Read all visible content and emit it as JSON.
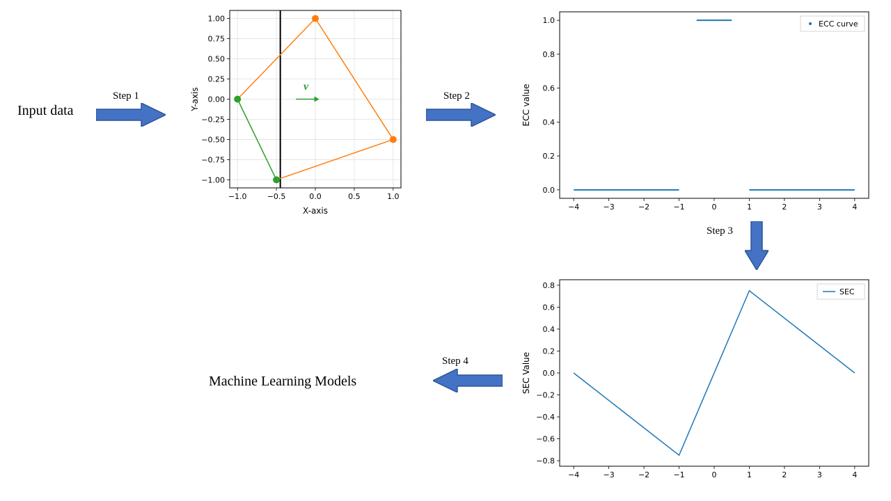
{
  "labels": {
    "input": "Input data",
    "step1": "Step 1",
    "step2": "Step 2",
    "step3": "Step 3",
    "step4": "Step 4",
    "ml": "Machine Learning Models"
  },
  "arrow": {
    "fill": "#4472c4",
    "stroke": "#2f5597",
    "stroke_width": 1.5
  },
  "chart1": {
    "xlabel": "X-axis",
    "ylabel": "Y-axis",
    "xlim": [
      -1.1,
      1.1
    ],
    "ylim": [
      -1.1,
      1.1
    ],
    "xticks": [
      -1.0,
      -0.5,
      0.0,
      0.5,
      1.0
    ],
    "yticks": [
      -1.0,
      -0.75,
      -0.5,
      -0.25,
      0.0,
      0.25,
      0.5,
      0.75,
      1.0
    ],
    "grid_color": "#e0e0e0",
    "border_color": "#000000",
    "bg": "#ffffff",
    "vline_x": -0.45,
    "vline_color": "#000000",
    "vline_width": 2,
    "vlabel": "v",
    "vlabel_color": "#2ca02c",
    "varrow_color": "#2ca02c",
    "points_orange": [
      [
        0,
        1
      ],
      [
        1,
        -0.5
      ]
    ],
    "points_green": [
      [
        -1,
        0
      ],
      [
        -0.5,
        -1
      ]
    ],
    "orange": "#ff7f0e",
    "green": "#2ca02c",
    "line_segments": [
      {
        "from": [
          -1,
          0
        ],
        "to": [
          0,
          1
        ],
        "color": "#ff7f0e"
      },
      {
        "from": [
          0,
          1
        ],
        "to": [
          1,
          -0.5
        ],
        "color": "#ff7f0e"
      },
      {
        "from": [
          1,
          -0.5
        ],
        "to": [
          -0.5,
          -1
        ],
        "color": "#ff7f0e"
      },
      {
        "from": [
          -0.5,
          -1
        ],
        "to": [
          -1,
          0
        ],
        "color": "#2ca02c"
      }
    ],
    "line_width": 1.5,
    "marker_size": 5
  },
  "chart2": {
    "ylabel": "ECC value",
    "xlim": [
      -4.4,
      4.4
    ],
    "ylim": [
      -0.05,
      1.05
    ],
    "xticks": [
      -4,
      -3,
      -2,
      -1,
      0,
      1,
      2,
      3,
      4
    ],
    "yticks": [
      0.0,
      0.2,
      0.4,
      0.6,
      0.8,
      1.0
    ],
    "border_color": "#000000",
    "bg": "#ffffff",
    "legend": "ECC curve",
    "legend_marker": "dot",
    "color": "#1f77b4",
    "segments": [
      {
        "from": [
          -4,
          0
        ],
        "to": [
          -1,
          0
        ]
      },
      {
        "from": [
          -0.5,
          1
        ],
        "to": [
          0.5,
          1
        ]
      },
      {
        "from": [
          1,
          0
        ],
        "to": [
          4,
          0
        ]
      }
    ],
    "line_width": 2
  },
  "chart3": {
    "ylabel": "SEC Value",
    "xlim": [
      -4.4,
      4.4
    ],
    "ylim": [
      -0.85,
      0.85
    ],
    "xticks": [
      -4,
      -3,
      -2,
      -1,
      0,
      1,
      2,
      3,
      4
    ],
    "yticks": [
      -0.8,
      -0.6,
      -0.4,
      -0.2,
      0.0,
      0.2,
      0.4,
      0.6,
      0.8
    ],
    "border_color": "#000000",
    "bg": "#ffffff",
    "legend": "SEC",
    "legend_marker": "line",
    "color": "#1f77b4",
    "points": [
      [
        -4,
        0
      ],
      [
        -1,
        -0.75
      ],
      [
        1,
        0.75
      ],
      [
        4,
        0
      ]
    ],
    "line_width": 1.5
  },
  "positions": {
    "input_label": [
      25,
      148
    ],
    "step1_label": [
      162,
      130
    ],
    "arrow1": [
      138,
      148,
      100,
      34
    ],
    "chart1": [
      268,
      5,
      320,
      310
    ],
    "step2_label": [
      637,
      130
    ],
    "arrow2": [
      612,
      148,
      100,
      34
    ],
    "chart2": [
      740,
      5,
      520,
      310
    ],
    "step3_label": [
      1015,
      324
    ],
    "arrow3": [
      1070,
      318,
      34,
      70
    ],
    "chart3": [
      740,
      390,
      520,
      310
    ],
    "step4_label": [
      635,
      511
    ],
    "arrow4": [
      622,
      530,
      100,
      34
    ],
    "ml_label": [
      300,
      537
    ]
  },
  "font": {
    "label_size": 20,
    "step_size": 15,
    "tick_size": 11,
    "axis_label_size": 12
  }
}
